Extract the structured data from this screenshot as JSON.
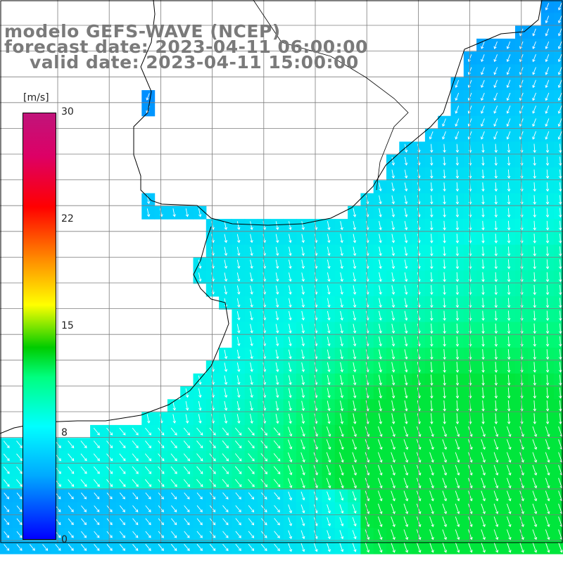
{
  "title": {
    "line1": "modelo GEFS-WAVE (NCEP)",
    "line2": "forecast date: 2023-04-11 06:00:00",
    "line3": "valid date: 2023-04-11 15:00:00"
  },
  "colorbar": {
    "unit": "[m/s]",
    "ticks": [
      "30",
      "22",
      "15",
      "8",
      "0"
    ],
    "tick_values": [
      30,
      22,
      15,
      8,
      0
    ],
    "range": [
      0,
      30
    ],
    "colors": [
      "#0000ff",
      "#00aaff",
      "#00ffff",
      "#00ff80",
      "#00cc00",
      "#ffff00",
      "#ff8800",
      "#ff0000",
      "#dd0066",
      "#c0147a"
    ]
  },
  "map": {
    "land_color": "#ffffff",
    "grid_color": "#808080",
    "coast_color": "#000000",
    "arrow_color": "#ffffff",
    "grid_lines": true
  }
}
